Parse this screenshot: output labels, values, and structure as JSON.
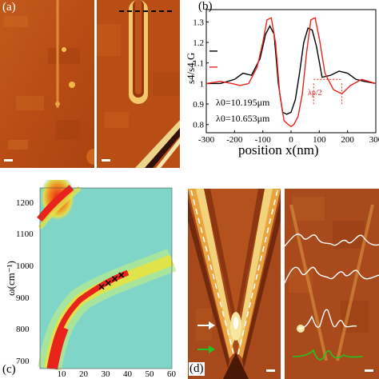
{
  "panel_a": {
    "label": "(a)",
    "dashed_line_color": "#000000",
    "scalebar_color": "#ffffff"
  },
  "panel_b": {
    "label": "(b)",
    "ylabel": "s4/s4,G",
    "xlabel": "position x(nm)",
    "lambda_annotation": "λp/2",
    "chart_data": {
      "type": "line",
      "xlim": [
        -300,
        300
      ],
      "ylim": [
        0.76,
        1.36
      ],
      "xticks": [
        -300,
        -200,
        -100,
        0,
        100,
        200,
        300
      ],
      "yticks": [
        0.8,
        0.9,
        1,
        1.1,
        1.2,
        1.3
      ],
      "series": [
        {
          "name": "λ0=10.195μm",
          "color": "#000000",
          "x": [
            -300,
            -250,
            -200,
            -170,
            -140,
            -110,
            -90,
            -75,
            -60,
            -45,
            -30,
            -15,
            0,
            15,
            30,
            45,
            60,
            75,
            90,
            110,
            140,
            170,
            200,
            230,
            260,
            300
          ],
          "y": [
            1.0,
            1.0,
            1.02,
            1.05,
            1.04,
            1.12,
            1.24,
            1.28,
            1.24,
            1.0,
            0.86,
            0.85,
            0.86,
            0.92,
            1.05,
            1.2,
            1.27,
            1.26,
            1.18,
            1.03,
            1.04,
            1.06,
            1.05,
            1.02,
            1.01,
            1.0
          ]
        },
        {
          "name": "λ0=10.653μm",
          "color": "#e8231c",
          "x": [
            -300,
            -250,
            -210,
            -180,
            -150,
            -120,
            -100,
            -85,
            -70,
            -55,
            -40,
            -25,
            -10,
            0,
            10,
            25,
            40,
            55,
            70,
            85,
            100,
            120,
            150,
            180,
            210,
            250,
            300
          ],
          "y": [
            1.0,
            1.01,
            1.0,
            0.99,
            1.0,
            1.08,
            1.2,
            1.31,
            1.32,
            1.2,
            0.95,
            0.82,
            0.8,
            0.79,
            0.8,
            0.84,
            0.95,
            1.15,
            1.31,
            1.32,
            1.22,
            1.05,
            0.97,
            0.95,
            0.99,
            1.02,
            1.0
          ]
        }
      ]
    }
  },
  "panel_c": {
    "label": "(c)",
    "ylabel": "ω(cm⁻¹)",
    "yticks": [
      1200,
      1100,
      1000,
      900,
      800,
      700
    ],
    "xticks": [
      10,
      20,
      30,
      40,
      50,
      60
    ],
    "xlim": [
      0,
      60
    ],
    "ylim": [
      680,
      1250
    ],
    "marker_points": [
      {
        "x": 28,
        "y": 938
      },
      {
        "x": 31,
        "y": 950
      },
      {
        "x": 34,
        "y": 963
      },
      {
        "x": 37,
        "y": 975
      }
    ],
    "colors": {
      "background": "#7fd6c8",
      "band_outer": "#d9e24a",
      "band_core": "#e8231c"
    }
  },
  "panel_d": {
    "label": "(d)",
    "arrow_white_color": "#ffffff",
    "arrow_green_color": "#22c322",
    "profile_white_color": "#ffffff",
    "profile_green_color": "#22c322"
  }
}
